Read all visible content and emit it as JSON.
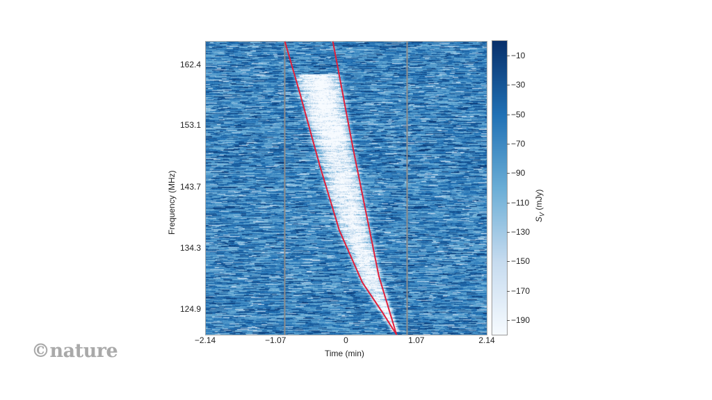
{
  "chart_data": {
    "type": "heatmap",
    "title": "",
    "xlabel": "Time (min)",
    "ylabel": "Frequency (MHz)",
    "colorbar_label": "S_V (mJy)",
    "x_ticks": [
      "−2.14",
      "−1.07",
      "0",
      "1.07",
      "2.14"
    ],
    "x_tick_values": [
      -2.14,
      -1.07,
      0,
      1.07,
      2.14
    ],
    "y_ticks": [
      "162.4",
      "153.1",
      "143.7",
      "134.3",
      "124.9"
    ],
    "y_tick_values": [
      162.4,
      153.1,
      143.7,
      134.3,
      124.9
    ],
    "xlim": [
      -2.14,
      2.14
    ],
    "ylim": [
      121.0,
      166.0
    ],
    "colorbar_ticks": [
      "−10",
      "−30",
      "−50",
      "−70",
      "−90",
      "−110",
      "−130",
      "−150",
      "−170",
      "−190"
    ],
    "colorbar_tick_values": [
      -10,
      -30,
      -50,
      -70,
      -90,
      -110,
      -130,
      -150,
      -170,
      -190
    ],
    "colorbar_range": [
      -200,
      0
    ],
    "colormap": {
      "high": "#08306b",
      "mid": "#4a98c9",
      "low": "#f7fbff"
    },
    "vertical_markers": [
      -0.93,
      0.93
    ],
    "vertical_marker_color": "#8c8c8c",
    "dispersion_curves": [
      {
        "name": "left-curve",
        "color": "#e0203c",
        "points": [
          [
            -0.93,
            166.0
          ],
          [
            -0.7,
            158.0
          ],
          [
            -0.4,
            147.0
          ],
          [
            -0.1,
            137.0
          ],
          [
            0.25,
            129.0
          ],
          [
            0.55,
            124.5
          ],
          [
            0.77,
            121.0
          ]
        ]
      },
      {
        "name": "right-curve",
        "color": "#e0203c",
        "points": [
          [
            -0.2,
            166.0
          ],
          [
            -0.05,
            158.0
          ],
          [
            0.1,
            150.0
          ],
          [
            0.3,
            140.0
          ],
          [
            0.5,
            130.0
          ],
          [
            0.65,
            125.0
          ],
          [
            0.77,
            121.0
          ]
        ]
      }
    ],
    "signal": "Bright dispersed pulse sweeping from about -0.8 min at 160 MHz to about 0.75 min at 122 MHz, between the two red curves",
    "grid": false,
    "legend": "none"
  },
  "figure": {
    "x_axis_title": "Time (min)",
    "y_axis_title": "Frequency (MHz)",
    "colorbar_title_main": "S",
    "colorbar_title_sub": "V",
    "colorbar_title_unit": " (mJy)"
  },
  "branding": {
    "logo_text": "©nature"
  }
}
